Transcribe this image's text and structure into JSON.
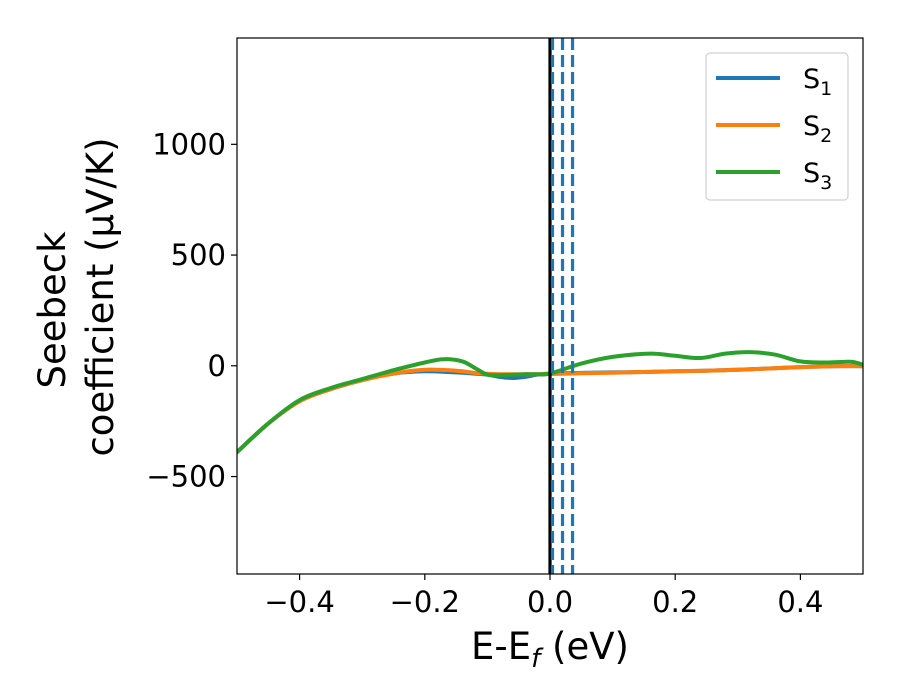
{
  "chart_data": {
    "type": "line",
    "xlabel": "E-E_f (eV)",
    "xlabel_parts": {
      "main": "E-E",
      "sub": "f",
      "unit": " (eV)"
    },
    "ylabel": "Seebeck coefficient (μV/K)",
    "ylabel_lines": [
      "Seebeck",
      "coefficient  (μV/K)"
    ],
    "xlim": [
      -0.5,
      0.5
    ],
    "ylim": [
      -940,
      1480
    ],
    "xticks": [
      -0.4,
      -0.2,
      0.0,
      0.2,
      0.4
    ],
    "xtick_labels": [
      "−0.4",
      "−0.2",
      "0.0",
      "0.2",
      "0.4"
    ],
    "yticks": [
      -500,
      0,
      500,
      1000
    ],
    "ytick_labels": [
      "−500",
      "0",
      "500",
      "1000"
    ],
    "grid": false,
    "legend_position": "top-right",
    "vertical_lines": [
      {
        "x": 0.0,
        "color": "#000000",
        "style": "solid"
      },
      {
        "x": 0.004,
        "color": "#1f77b4",
        "style": "dashed"
      },
      {
        "x": 0.02,
        "color": "#1f77b4",
        "style": "dashed"
      },
      {
        "x": 0.036,
        "color": "#1f77b4",
        "style": "dashed"
      }
    ],
    "series": [
      {
        "name": "S1",
        "legend_main": "S",
        "legend_sub": "1",
        "color": "#1f77b4",
        "x": [
          -0.5,
          -0.45,
          -0.4,
          -0.35,
          -0.3,
          -0.25,
          -0.2,
          -0.15,
          -0.12,
          -0.1,
          -0.08,
          -0.06,
          -0.04,
          -0.02,
          0.0,
          0.05,
          0.1,
          0.15,
          0.2,
          0.25,
          0.3,
          0.35,
          0.4,
          0.45,
          0.5
        ],
        "y": [
          -390,
          -260,
          -160,
          -105,
          -65,
          -35,
          -25,
          -30,
          -35,
          -40,
          -50,
          -55,
          -50,
          -40,
          -35,
          -32,
          -30,
          -28,
          -25,
          -22,
          -18,
          -12,
          -6,
          -2,
          -2
        ]
      },
      {
        "name": "S2",
        "legend_main": "S",
        "legend_sub": "2",
        "color": "#ff7f0e",
        "x": [
          -0.5,
          -0.45,
          -0.4,
          -0.35,
          -0.3,
          -0.25,
          -0.2,
          -0.15,
          -0.12,
          -0.1,
          -0.08,
          -0.06,
          -0.04,
          -0.02,
          0.0,
          0.05,
          0.1,
          0.15,
          0.2,
          0.25,
          0.3,
          0.35,
          0.4,
          0.45,
          0.5
        ],
        "y": [
          -390,
          -260,
          -160,
          -105,
          -65,
          -35,
          -18,
          -22,
          -32,
          -36,
          -38,
          -38,
          -38,
          -38,
          -37,
          -34,
          -31,
          -28,
          -25,
          -22,
          -18,
          -12,
          -6,
          -2,
          -2
        ]
      },
      {
        "name": "S3",
        "legend_main": "S",
        "legend_sub": "3",
        "color": "#2ca02c",
        "x": [
          -0.5,
          -0.45,
          -0.4,
          -0.35,
          -0.3,
          -0.25,
          -0.2,
          -0.17,
          -0.14,
          -0.12,
          -0.1,
          -0.08,
          -0.06,
          -0.04,
          -0.02,
          0.0,
          0.05,
          0.1,
          0.16,
          0.2,
          0.24,
          0.28,
          0.32,
          0.36,
          0.4,
          0.44,
          0.48,
          0.5
        ],
        "y": [
          -390,
          -260,
          -155,
          -100,
          -60,
          -20,
          15,
          30,
          20,
          -10,
          -40,
          -42,
          -40,
          -38,
          -38,
          -35,
          10,
          40,
          55,
          45,
          35,
          55,
          62,
          50,
          20,
          15,
          18,
          5
        ]
      }
    ]
  }
}
